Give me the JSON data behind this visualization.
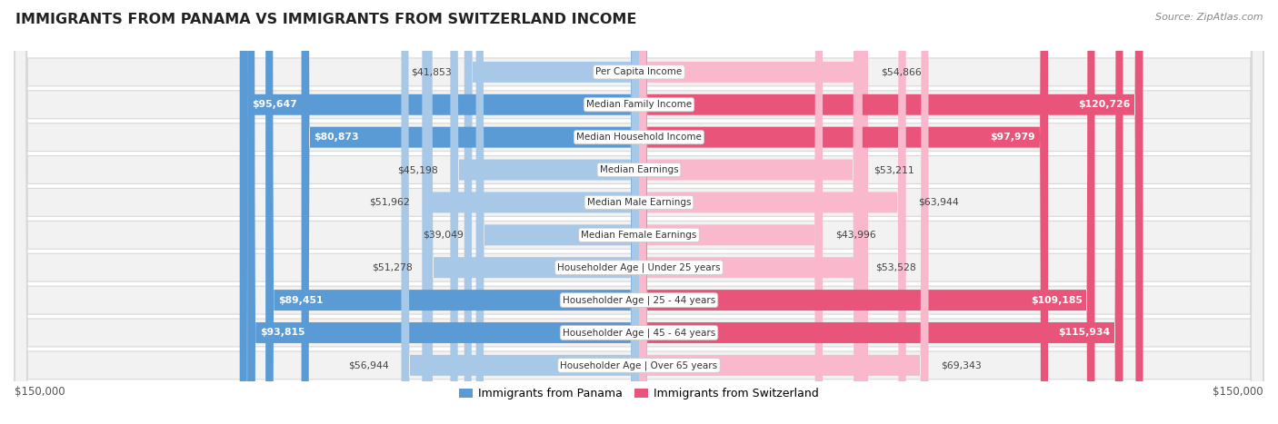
{
  "title": "IMMIGRANTS FROM PANAMA VS IMMIGRANTS FROM SWITZERLAND INCOME",
  "source": "Source: ZipAtlas.com",
  "categories": [
    "Per Capita Income",
    "Median Family Income",
    "Median Household Income",
    "Median Earnings",
    "Median Male Earnings",
    "Median Female Earnings",
    "Householder Age | Under 25 years",
    "Householder Age | 25 - 44 years",
    "Householder Age | 45 - 64 years",
    "Householder Age | Over 65 years"
  ],
  "panama_values": [
    41853,
    95647,
    80873,
    45198,
    51962,
    39049,
    51278,
    89451,
    93815,
    56944
  ],
  "switzerland_values": [
    54866,
    120726,
    97979,
    53211,
    63944,
    43996,
    53528,
    109185,
    115934,
    69343
  ],
  "panama_labels": [
    "$41,853",
    "$95,647",
    "$80,873",
    "$45,198",
    "$51,962",
    "$39,049",
    "$51,278",
    "$89,451",
    "$93,815",
    "$56,944"
  ],
  "switzerland_labels": [
    "$54,866",
    "$120,726",
    "$97,979",
    "$53,211",
    "$63,944",
    "$43,996",
    "$53,528",
    "$109,185",
    "$115,934",
    "$69,343"
  ],
  "panama_color_light": "#a8c8e8",
  "panama_color_dark": "#5b9bd5",
  "switzerland_color_light": "#f9b8cc",
  "switzerland_color_dark": "#e8547a",
  "max_value": 150000,
  "background_color": "#ffffff",
  "row_bg_color": "#f2f2f2",
  "row_border_color": "#d8d8d8",
  "legend_panama": "Immigrants from Panama",
  "legend_switzerland": "Immigrants from Switzerland",
  "panama_inside_threshold": 60000,
  "switzerland_inside_threshold": 80000
}
